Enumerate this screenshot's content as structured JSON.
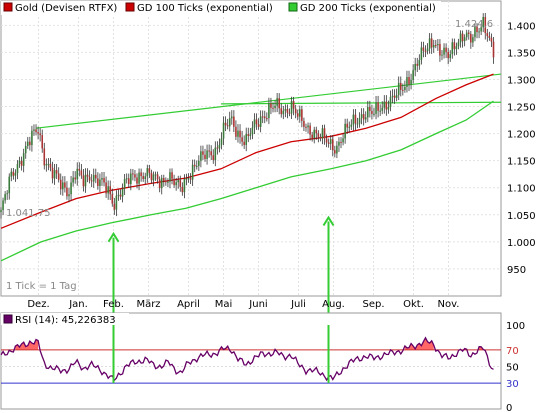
{
  "chart_data": [
    {
      "type": "candlestick",
      "legend": [
        {
          "name": "Gold (Devisen RTFX)",
          "color": "#cc0000"
        },
        {
          "name": "GD 100 Ticks (exponential)",
          "color": "#cc0000"
        },
        {
          "name": "GD 200 Ticks (exponential)",
          "color": "#33cc33"
        }
      ],
      "legend_position": "top",
      "grid": true,
      "ylim": [
        900,
        1445
      ],
      "y_ticks": [
        "1.400",
        "1.350",
        "1.300",
        "1.250",
        "1.200",
        "1.150",
        "1.100",
        "1.050",
        "1.000",
        "950"
      ],
      "y_tick_values": [
        1400,
        1350,
        1300,
        1250,
        1200,
        1150,
        1100,
        1050,
        1000,
        950
      ],
      "x_ticks": [
        "Dez.",
        "Jan.",
        "Feb.",
        "März",
        "April",
        "Mai",
        "Juni",
        "Juli",
        "Aug.",
        "Sep.",
        "Okt.",
        "Nov."
      ],
      "x_tick_pos": [
        0.075,
        0.155,
        0.225,
        0.295,
        0.375,
        0.445,
        0.515,
        0.595,
        0.665,
        0.745,
        0.825,
        0.895
      ],
      "annotation_low": "1.041,75",
      "annotation_high": "1.424,6",
      "footer_note": "1 Tick = 1 Tag",
      "price_path": [
        [
          0.0,
          1055
        ],
        [
          0.02,
          1120
        ],
        [
          0.04,
          1155
        ],
        [
          0.06,
          1190
        ],
        [
          0.075,
          1210
        ],
        [
          0.085,
          1160
        ],
        [
          0.1,
          1130
        ],
        [
          0.12,
          1105
        ],
        [
          0.135,
          1095
        ],
        [
          0.15,
          1130
        ],
        [
          0.165,
          1110
        ],
        [
          0.18,
          1125
        ],
        [
          0.2,
          1110
        ],
        [
          0.215,
          1090
        ],
        [
          0.225,
          1070
        ],
        [
          0.235,
          1090
        ],
        [
          0.25,
          1110
        ],
        [
          0.27,
          1120
        ],
        [
          0.29,
          1130
        ],
        [
          0.305,
          1115
        ],
        [
          0.32,
          1110
        ],
        [
          0.335,
          1125
        ],
        [
          0.35,
          1105
        ],
        [
          0.36,
          1095
        ],
        [
          0.375,
          1125
        ],
        [
          0.39,
          1145
        ],
        [
          0.41,
          1160
        ],
        [
          0.43,
          1170
        ],
        [
          0.445,
          1205
        ],
        [
          0.46,
          1225
        ],
        [
          0.475,
          1200
        ],
        [
          0.49,
          1185
        ],
        [
          0.505,
          1210
        ],
        [
          0.52,
          1230
        ],
        [
          0.535,
          1245
        ],
        [
          0.55,
          1250
        ],
        [
          0.565,
          1240
        ],
        [
          0.58,
          1255
        ],
        [
          0.595,
          1230
        ],
        [
          0.61,
          1210
        ],
        [
          0.625,
          1205
        ],
        [
          0.64,
          1195
        ],
        [
          0.655,
          1180
        ],
        [
          0.67,
          1175
        ],
        [
          0.685,
          1200
        ],
        [
          0.7,
          1215
        ],
        [
          0.715,
          1230
        ],
        [
          0.73,
          1240
        ],
        [
          0.745,
          1235
        ],
        [
          0.76,
          1250
        ],
        [
          0.775,
          1260
        ],
        [
          0.79,
          1270
        ],
        [
          0.805,
          1285
        ],
        [
          0.82,
          1310
        ],
        [
          0.835,
          1335
        ],
        [
          0.85,
          1355
        ],
        [
          0.865,
          1375
        ],
        [
          0.88,
          1350
        ],
        [
          0.895,
          1340
        ],
        [
          0.91,
          1370
        ],
        [
          0.925,
          1385
        ],
        [
          0.94,
          1370
        ],
        [
          0.955,
          1395
        ],
        [
          0.965,
          1410
        ],
        [
          0.975,
          1380
        ],
        [
          0.985,
          1345
        ]
      ],
      "gd100": [
        [
          0.0,
          1025
        ],
        [
          0.08,
          1055
        ],
        [
          0.15,
          1080
        ],
        [
          0.22,
          1095
        ],
        [
          0.3,
          1108
        ],
        [
          0.37,
          1118
        ],
        [
          0.44,
          1135
        ],
        [
          0.51,
          1165
        ],
        [
          0.58,
          1185
        ],
        [
          0.66,
          1195
        ],
        [
          0.73,
          1210
        ],
        [
          0.8,
          1230
        ],
        [
          0.87,
          1265
        ],
        [
          0.93,
          1290
        ],
        [
          0.985,
          1310
        ]
      ],
      "gd200": [
        [
          0.0,
          965
        ],
        [
          0.08,
          1000
        ],
        [
          0.15,
          1020
        ],
        [
          0.22,
          1035
        ],
        [
          0.3,
          1050
        ],
        [
          0.37,
          1062
        ],
        [
          0.44,
          1080
        ],
        [
          0.51,
          1100
        ],
        [
          0.58,
          1120
        ],
        [
          0.66,
          1135
        ],
        [
          0.73,
          1150
        ],
        [
          0.8,
          1170
        ],
        [
          0.87,
          1200
        ],
        [
          0.93,
          1225
        ],
        [
          0.985,
          1260
        ]
      ],
      "trend_lines": [
        {
          "color": "#33cc33",
          "points": [
            [
              0.07,
              1210
            ],
            [
              1.0,
              1310
            ]
          ]
        },
        {
          "color": "#33cc33",
          "points": [
            [
              0.44,
              1255
            ],
            [
              1.0,
              1258
            ]
          ]
        }
      ],
      "arrows": [
        {
          "x": 0.225,
          "from": 905,
          "to": 1015,
          "color": "#33cc33"
        },
        {
          "x": 0.655,
          "from": 905,
          "to": 1045,
          "color": "#33cc33"
        }
      ]
    },
    {
      "type": "line",
      "legend": [
        {
          "name": "RSI (14): 45,226383",
          "color": "#660066"
        }
      ],
      "ylim": [
        0,
        100
      ],
      "y_ticks": [
        "100",
        "70",
        "50",
        "30",
        "0"
      ],
      "y_tick_values": [
        100,
        70,
        50,
        30,
        0
      ],
      "levels": [
        {
          "value": 70,
          "color": "#cc3333"
        },
        {
          "value": 30,
          "color": "#3333cc"
        }
      ],
      "rsi": [
        [
          0.0,
          62
        ],
        [
          0.02,
          70
        ],
        [
          0.04,
          75
        ],
        [
          0.06,
          80
        ],
        [
          0.075,
          78
        ],
        [
          0.085,
          55
        ],
        [
          0.1,
          48
        ],
        [
          0.12,
          45
        ],
        [
          0.135,
          47
        ],
        [
          0.15,
          55
        ],
        [
          0.165,
          48
        ],
        [
          0.18,
          52
        ],
        [
          0.2,
          46
        ],
        [
          0.215,
          38
        ],
        [
          0.225,
          33
        ],
        [
          0.235,
          40
        ],
        [
          0.25,
          50
        ],
        [
          0.27,
          56
        ],
        [
          0.29,
          58
        ],
        [
          0.305,
          52
        ],
        [
          0.32,
          50
        ],
        [
          0.335,
          55
        ],
        [
          0.35,
          46
        ],
        [
          0.36,
          42
        ],
        [
          0.375,
          54
        ],
        [
          0.39,
          60
        ],
        [
          0.41,
          64
        ],
        [
          0.43,
          66
        ],
        [
          0.445,
          71
        ],
        [
          0.46,
          72
        ],
        [
          0.475,
          58
        ],
        [
          0.49,
          52
        ],
        [
          0.505,
          60
        ],
        [
          0.52,
          64
        ],
        [
          0.535,
          66
        ],
        [
          0.55,
          67
        ],
        [
          0.565,
          62
        ],
        [
          0.58,
          64
        ],
        [
          0.595,
          52
        ],
        [
          0.61,
          46
        ],
        [
          0.625,
          45
        ],
        [
          0.64,
          42
        ],
        [
          0.655,
          37
        ],
        [
          0.665,
          35
        ],
        [
          0.685,
          48
        ],
        [
          0.7,
          55
        ],
        [
          0.715,
          60
        ],
        [
          0.73,
          62
        ],
        [
          0.745,
          60
        ],
        [
          0.76,
          63
        ],
        [
          0.775,
          65
        ],
        [
          0.79,
          68
        ],
        [
          0.805,
          70
        ],
        [
          0.82,
          74
        ],
        [
          0.835,
          77
        ],
        [
          0.85,
          80
        ],
        [
          0.865,
          78
        ],
        [
          0.88,
          63
        ],
        [
          0.895,
          60
        ],
        [
          0.91,
          66
        ],
        [
          0.925,
          70
        ],
        [
          0.94,
          64
        ],
        [
          0.955,
          70
        ],
        [
          0.965,
          72
        ],
        [
          0.975,
          58
        ],
        [
          0.985,
          45
        ]
      ]
    }
  ]
}
